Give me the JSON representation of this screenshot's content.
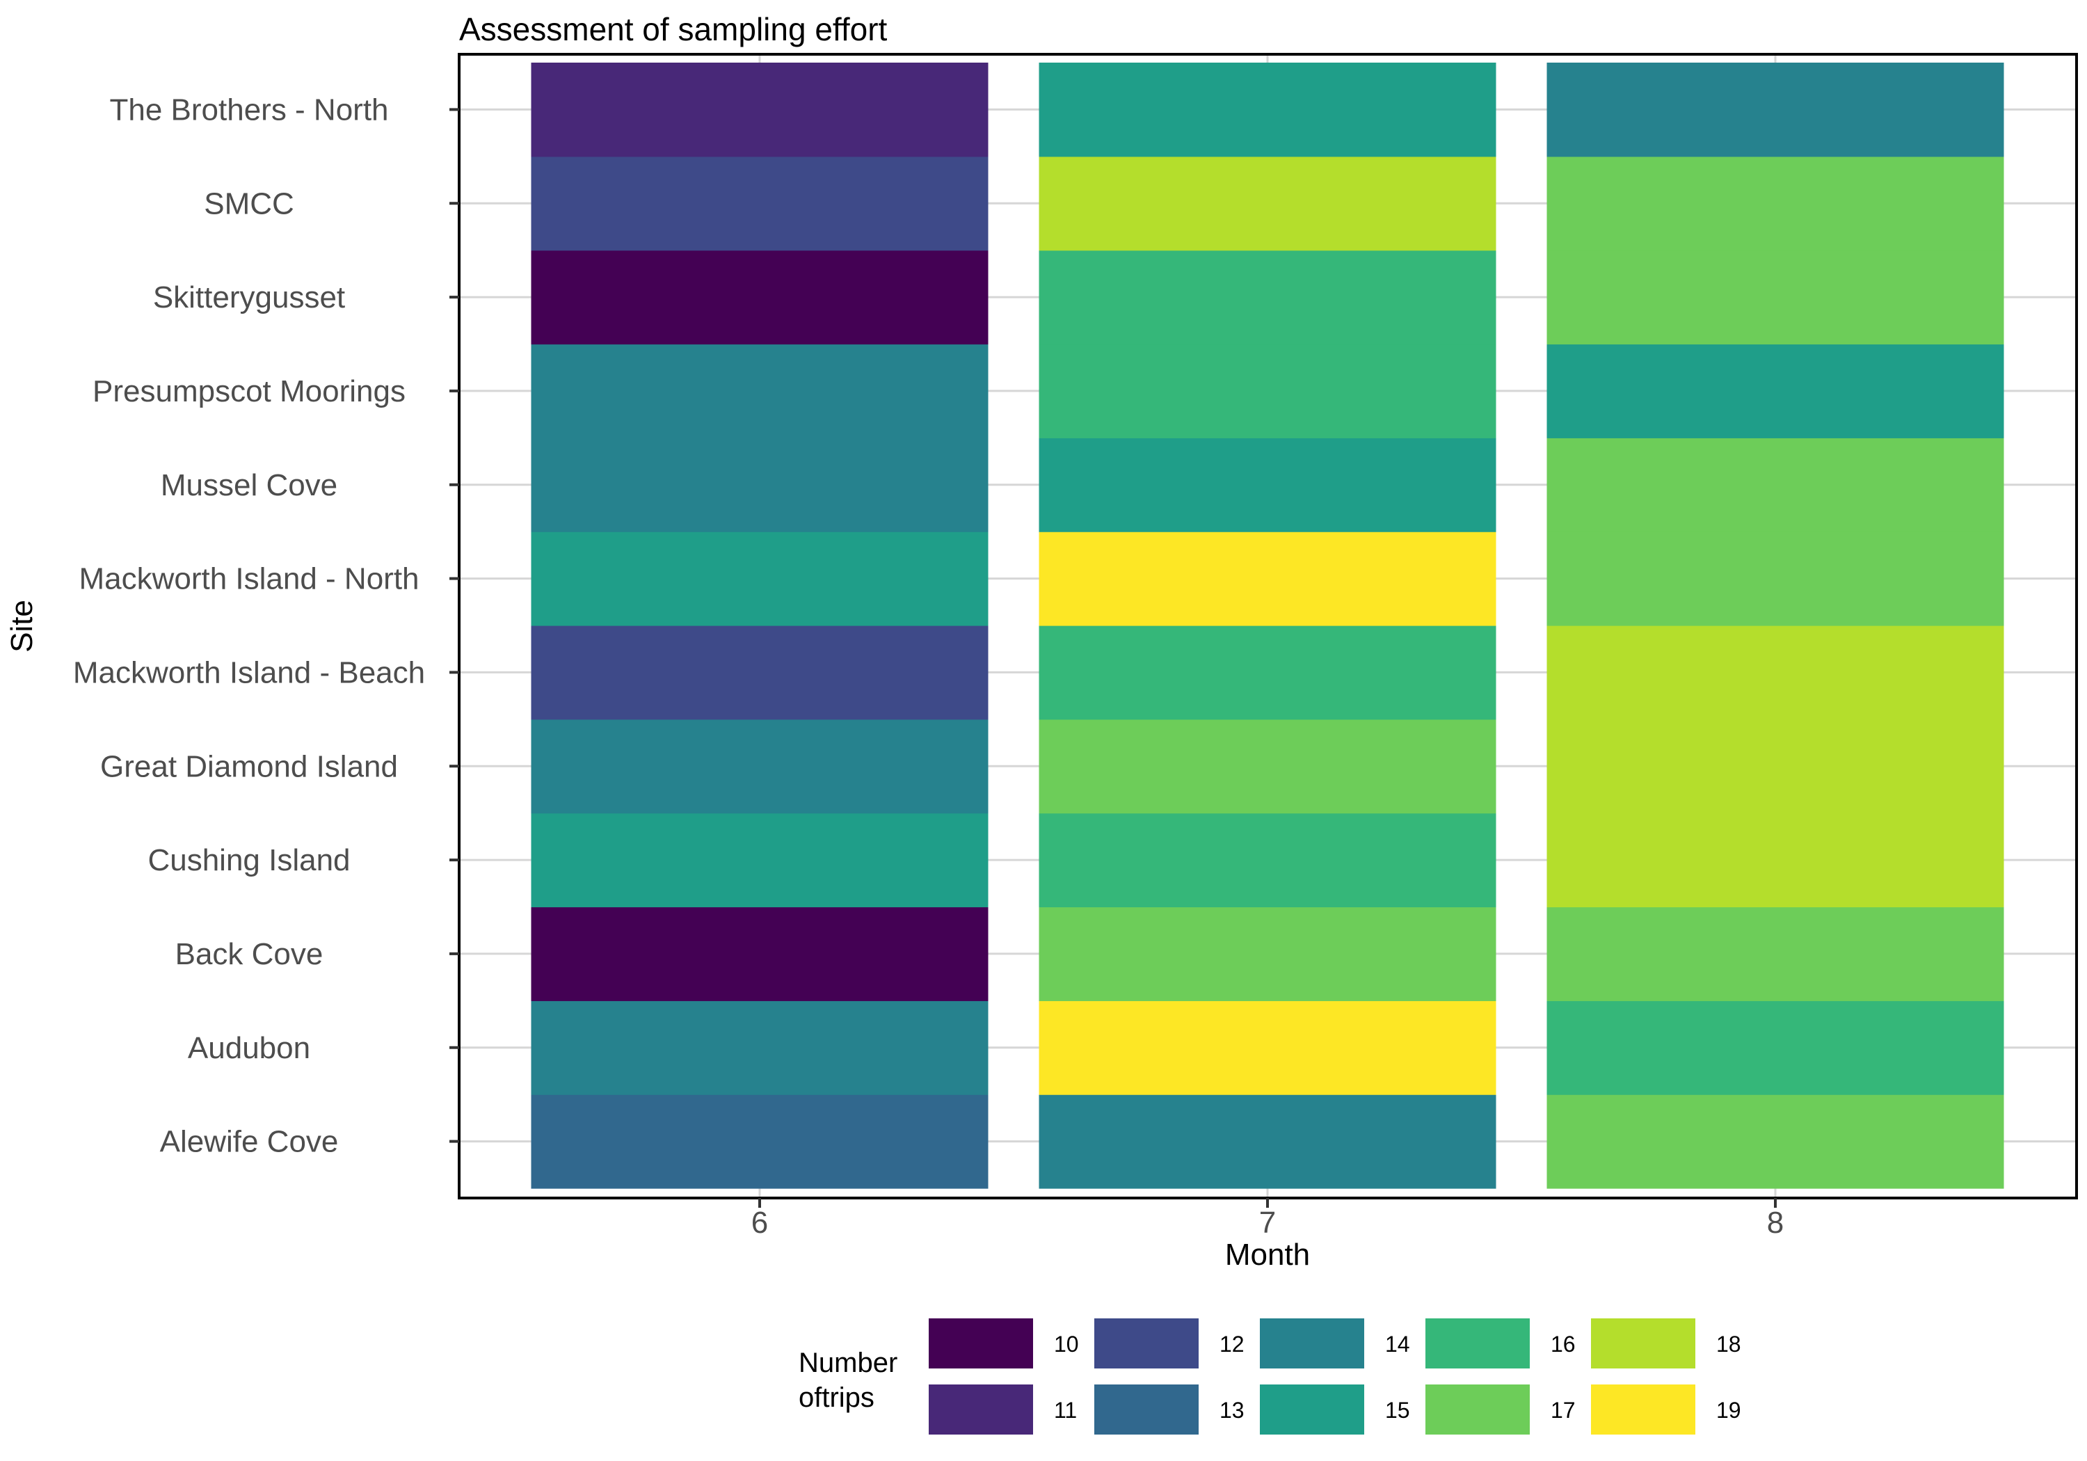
{
  "chart_data": {
    "type": "heatmap",
    "title": "Assessment of sampling effort",
    "xlabel": "Month",
    "ylabel": "Site",
    "x": [
      "6",
      "7",
      "8"
    ],
    "y": [
      "Alewife Cove",
      "Audubon",
      "Back Cove",
      "Cushing Island",
      "Great Diamond Island",
      "Mackworth Island - Beach",
      "Mackworth Island - North",
      "Mussel Cove",
      "Presumpscot Moorings",
      "Skitterygusset",
      "SMCC",
      "The Brothers - North"
    ],
    "values": [
      [
        13,
        14,
        10,
        15,
        14,
        12,
        15,
        14,
        14,
        10,
        12,
        11
      ],
      [
        14,
        19,
        17,
        16,
        17,
        16,
        19,
        15,
        16,
        16,
        18,
        15
      ],
      [
        17,
        16,
        17,
        18,
        18,
        18,
        17,
        17,
        15,
        17,
        17,
        14
      ]
    ],
    "grid": true,
    "legend": {
      "title_lines": [
        "Number",
        "oftrips"
      ],
      "position": "bottom",
      "entries": [
        {
          "value": "10",
          "color": "#440154"
        },
        {
          "value": "11",
          "color": "#482878"
        },
        {
          "value": "12",
          "color": "#3E4A89"
        },
        {
          "value": "13",
          "color": "#31688E"
        },
        {
          "value": "14",
          "color": "#26828E"
        },
        {
          "value": "15",
          "color": "#1F9E89"
        },
        {
          "value": "16",
          "color": "#35B779"
        },
        {
          "value": "17",
          "color": "#6DCD59"
        },
        {
          "value": "18",
          "color": "#B4DE2C"
        },
        {
          "value": "19",
          "color": "#FDE725"
        }
      ]
    }
  }
}
